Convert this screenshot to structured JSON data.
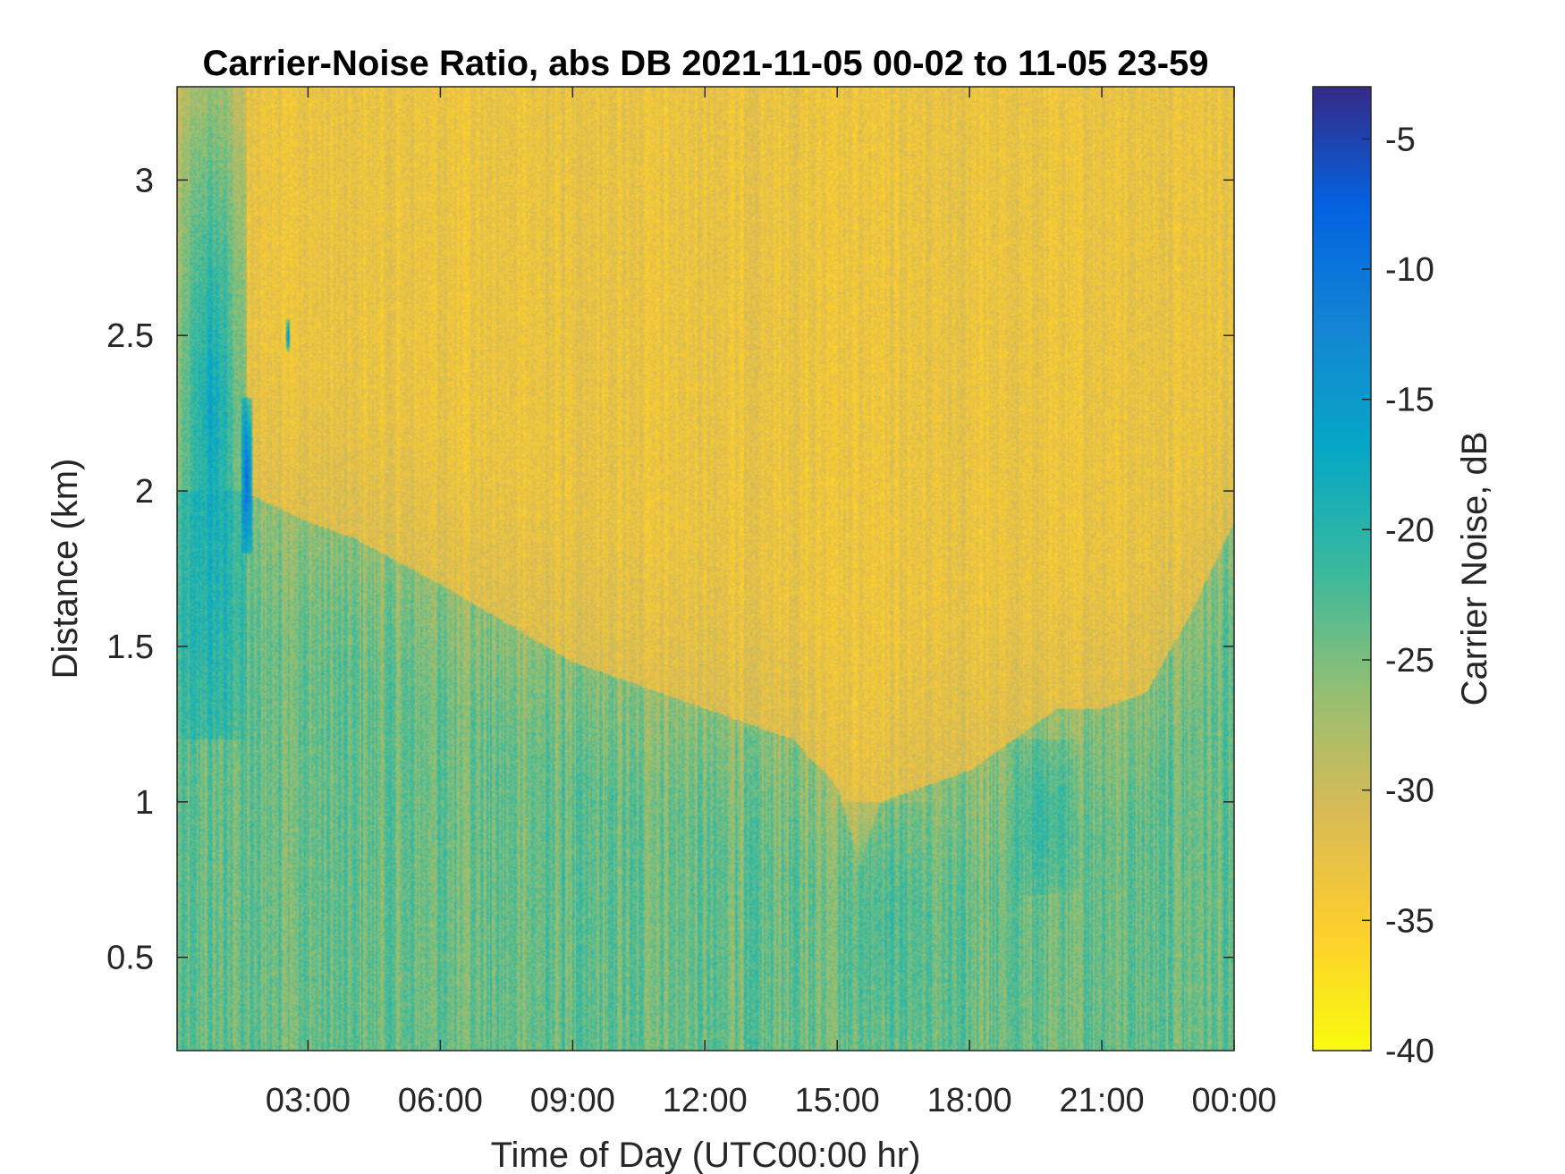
{
  "chart_data": {
    "type": "heatmap",
    "title": "Carrier-Noise Ratio, abs DB 2021-11-05 00-02 to 11-05 23-59",
    "xlabel": "Time of Day (UTC00:00 hr)",
    "ylabel": "Distance (km)",
    "colorbar_label": "Carrier Noise, dB",
    "x_unit": "hours",
    "xlim": [
      0.03,
      24.0
    ],
    "ylim": [
      0.2,
      3.3
    ],
    "clim": [
      -40,
      -3
    ],
    "x_ticks": [
      3,
      6,
      9,
      12,
      15,
      18,
      21,
      24
    ],
    "x_tick_labels": [
      "03:00",
      "06:00",
      "09:00",
      "12:00",
      "15:00",
      "18:00",
      "21:00",
      "00:00"
    ],
    "y_ticks": [
      0.5,
      1,
      1.5,
      2,
      2.5,
      3
    ],
    "y_tick_labels": [
      "0.5",
      "1",
      "1.5",
      "2",
      "2.5",
      "3"
    ],
    "colorbar_ticks": [
      -40,
      -35,
      -30,
      -25,
      -20,
      -15,
      -10,
      -5
    ],
    "colorbar_tick_labels": [
      "-40",
      "-35",
      "-30",
      "-25",
      "-20",
      "-15",
      "-10",
      "-5"
    ],
    "colormap": "parula",
    "colormap_stops": [
      "#352a87",
      "#0363e1",
      "#1485d4",
      "#06a7c6",
      "#38b99e",
      "#92bf73",
      "#d9ba56",
      "#fcce2e",
      "#f9fb0e"
    ],
    "boundary_layer_top_km": {
      "hours": [
        0.03,
        1.5,
        3,
        4,
        6,
        9,
        11,
        12,
        13,
        14,
        15,
        15.5,
        16,
        17,
        18,
        19,
        20,
        21,
        22,
        23,
        24
      ],
      "values": [
        2.0,
        2.0,
        1.9,
        1.85,
        1.7,
        1.45,
        1.35,
        1.3,
        1.25,
        1.2,
        1.05,
        0.8,
        1.0,
        1.05,
        1.1,
        1.2,
        1.3,
        1.3,
        1.35,
        1.6,
        1.9
      ]
    },
    "features": [
      {
        "hours": [
          0.03,
          1.6
        ],
        "distance_km": [
          1.2,
          3.3
        ],
        "value_db": -17
      },
      {
        "hours": [
          1.5,
          1.75
        ],
        "distance_km": [
          1.8,
          2.3
        ],
        "value_db": -8
      },
      {
        "hours": [
          2.5,
          2.6
        ],
        "distance_km": [
          2.45,
          2.55
        ],
        "value_db": -10
      },
      {
        "hours": [
          15.0,
          17.0
        ],
        "distance_km": [
          0.2,
          1.0
        ],
        "value_db": -22
      },
      {
        "hours": [
          19.0,
          20.5
        ],
        "distance_km": [
          0.7,
          1.2
        ],
        "value_db": -21
      }
    ]
  }
}
